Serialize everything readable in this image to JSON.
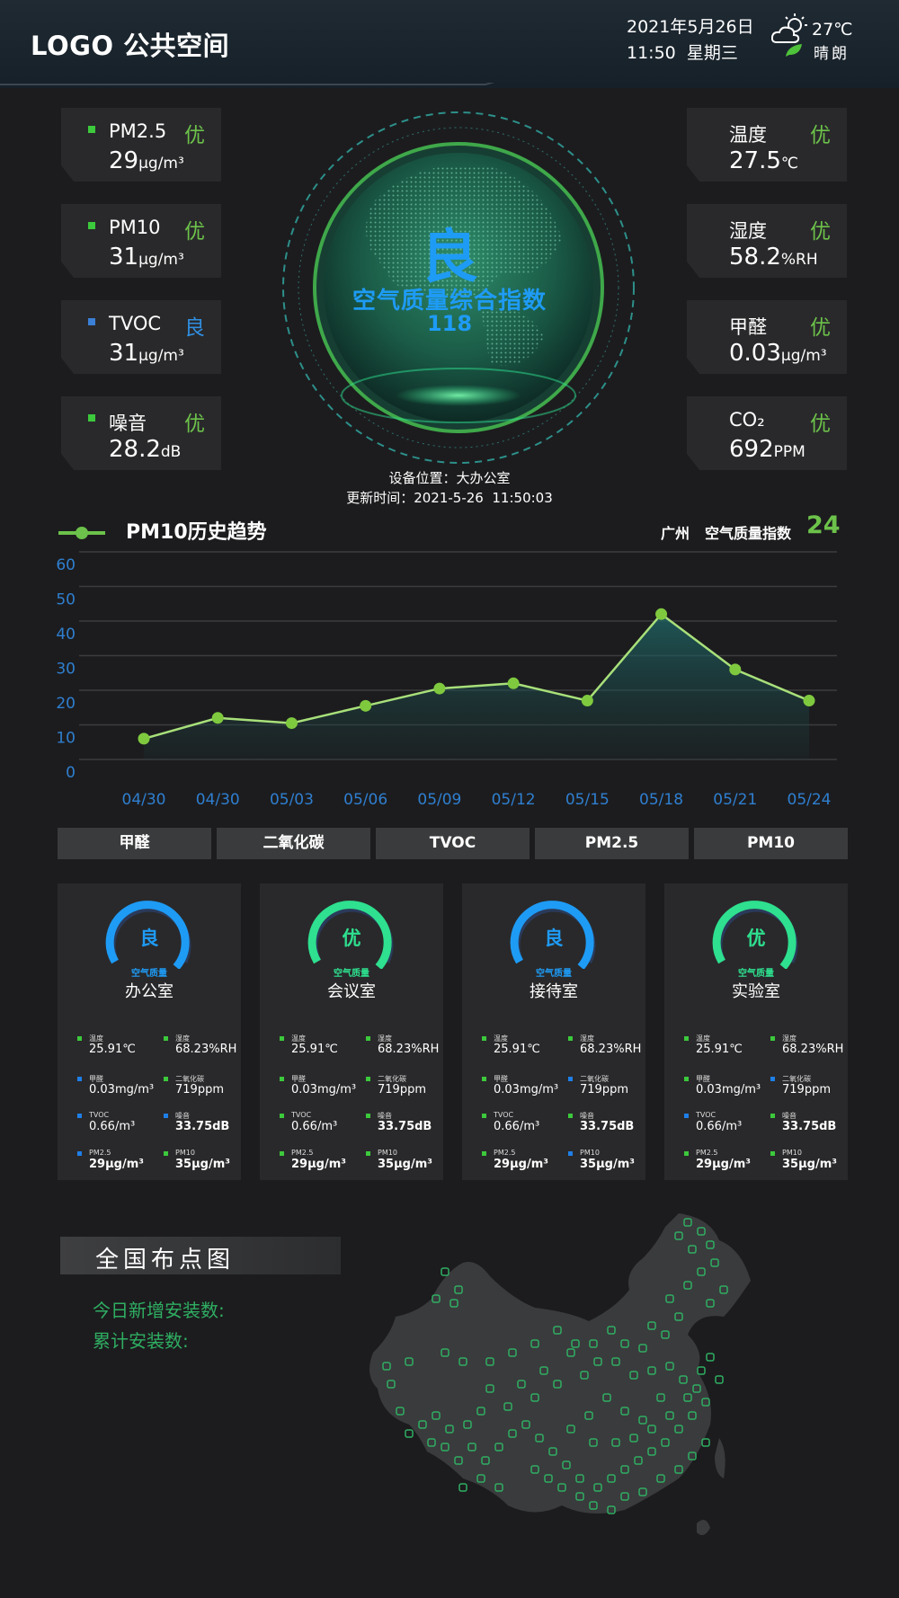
{
  "header": {
    "logo": "LOGO 公共空间",
    "date": "2021年5月26日",
    "time_weekday": "11:50  星期三",
    "temperature": "27℃",
    "weather": "晴朗"
  },
  "metrics_left": [
    {
      "name": "PM2.5",
      "level": "优",
      "value": "29",
      "unit": "μg/m³",
      "level_color": "#6cc24a"
    },
    {
      "name": "PM10",
      "level": "优",
      "value": "31",
      "unit": "μg/m³",
      "level_color": "#6cc24a"
    },
    {
      "name": "TVOC",
      "level": "良",
      "value": "31",
      "unit": "μg/m³",
      "level_color": "#2f8ee0"
    },
    {
      "name": "噪音",
      "level": "优",
      "value": "28.2",
      "unit": "dB",
      "level_color": "#6cc24a"
    }
  ],
  "metrics_right": [
    {
      "name": "温度",
      "level": "优",
      "value": "27.5",
      "unit": "℃"
    },
    {
      "name": "湿度",
      "level": "优",
      "value": "58.2",
      "unit": "%RH"
    },
    {
      "name": "甲醛",
      "level": "优",
      "value": "0.03",
      "unit": "μg/m³"
    },
    {
      "name": "CO₂",
      "level": "优",
      "value": "692",
      "unit": "PPM"
    }
  ],
  "globe": {
    "level": "良",
    "label": "空气质量综合指数",
    "value": "118"
  },
  "device": {
    "location": "设备位置：大办公室",
    "updated": "更新时间：2021-5-26  11:50:03"
  },
  "trend": {
    "title": "PM10历史趋势",
    "city": "广州",
    "aqi_label": "空气质量指数",
    "aqi_value": "24"
  },
  "chart_data": {
    "type": "area",
    "categories": [
      "04/30",
      "04/30",
      "05/03",
      "05/06",
      "05/09",
      "05/12",
      "05/15",
      "05/18",
      "05/21",
      "05/24"
    ],
    "values": [
      6,
      12,
      10.5,
      15.5,
      20.5,
      22,
      17,
      42,
      26,
      17
    ],
    "yticks": [
      0,
      10,
      20,
      30,
      40,
      50,
      60
    ],
    "ylim": [
      0,
      60
    ],
    "xlabel": "",
    "ylabel": "",
    "line_color": "#a8e07a",
    "point_color": "#7fc93f",
    "tick_color": "#2f7fd0"
  },
  "tabs": [
    "甲醛",
    "二氧化碳",
    "TVOC",
    "PM2.5",
    "PM10"
  ],
  "rooms": [
    {
      "level": "良",
      "sub": "空气质量",
      "name": "办公室",
      "color": "#1e9bf5",
      "items": [
        {
          "label": "温度",
          "value": "25.91℃",
          "sq": "green",
          "bold": false
        },
        {
          "label": "湿度",
          "value": "68.23%RH",
          "sq": "green",
          "bold": false
        },
        {
          "label": "甲醛",
          "value": "0.03mg/m³",
          "sq": "blue",
          "bold": false
        },
        {
          "label": "二氧化碳",
          "value": "719ppm",
          "sq": "green",
          "bold": false
        },
        {
          "label": "TVOC",
          "value": "0.66/m³",
          "sq": "blue",
          "bold": false
        },
        {
          "label": "噪音",
          "value": "33.75dB",
          "sq": "blue",
          "bold": true
        },
        {
          "label": "PM2.5",
          "value": "29μg/m³",
          "sq": "blue",
          "bold": true
        },
        {
          "label": "PM10",
          "value": "35μg/m³",
          "sq": "green",
          "bold": true
        }
      ]
    },
    {
      "level": "优",
      "sub": "空气质量",
      "name": "会议室",
      "color": "#2ee08f",
      "items": [
        {
          "label": "温度",
          "value": "25.91℃",
          "sq": "green",
          "bold": false
        },
        {
          "label": "湿度",
          "value": "68.23%RH",
          "sq": "green",
          "bold": false
        },
        {
          "label": "甲醛",
          "value": "0.03mg/m³",
          "sq": "green",
          "bold": false
        },
        {
          "label": "二氧化碳",
          "value": "719ppm",
          "sq": "green",
          "bold": false
        },
        {
          "label": "TVOC",
          "value": "0.66/m³",
          "sq": "green",
          "bold": false
        },
        {
          "label": "噪音",
          "value": "33.75dB",
          "sq": "green",
          "bold": true
        },
        {
          "label": "PM2.5",
          "value": "29μg/m³",
          "sq": "green",
          "bold": true
        },
        {
          "label": "PM10",
          "value": "35μg/m³",
          "sq": "green",
          "bold": true
        }
      ]
    },
    {
      "level": "良",
      "sub": "空气质量",
      "name": "接待室",
      "color": "#1e9bf5",
      "items": [
        {
          "label": "温度",
          "value": "25.91℃",
          "sq": "green",
          "bold": false
        },
        {
          "label": "湿度",
          "value": "68.23%RH",
          "sq": "green",
          "bold": false
        },
        {
          "label": "甲醛",
          "value": "0.03mg/m³",
          "sq": "green",
          "bold": false
        },
        {
          "label": "二氧化碳",
          "value": "719ppm",
          "sq": "blue",
          "bold": false
        },
        {
          "label": "TVOC",
          "value": "0.66/m³",
          "sq": "green",
          "bold": false
        },
        {
          "label": "噪音",
          "value": "33.75dB",
          "sq": "green",
          "bold": true
        },
        {
          "label": "PM2.5",
          "value": "29μg/m³",
          "sq": "green",
          "bold": true
        },
        {
          "label": "PM10",
          "value": "35μg/m³",
          "sq": "blue",
          "bold": true
        }
      ]
    },
    {
      "level": "优",
      "sub": "空气质量",
      "name": "实验室",
      "color": "#2ee08f",
      "items": [
        {
          "label": "温度",
          "value": "25.91℃",
          "sq": "green",
          "bold": false
        },
        {
          "label": "湿度",
          "value": "68.23%RH",
          "sq": "green",
          "bold": false
        },
        {
          "label": "甲醛",
          "value": "0.03mg/m³",
          "sq": "green",
          "bold": false
        },
        {
          "label": "二氧化碳",
          "value": "719ppm",
          "sq": "blue",
          "bold": false
        },
        {
          "label": "TVOC",
          "value": "0.66/m³",
          "sq": "blue",
          "bold": false
        },
        {
          "label": "噪音",
          "value": "33.75dB",
          "sq": "green",
          "bold": true
        },
        {
          "label": "PM2.5",
          "value": "29μg/m³",
          "sq": "green",
          "bold": true
        },
        {
          "label": "PM10",
          "value": "35μg/m³",
          "sq": "green",
          "bold": true
        }
      ]
    }
  ],
  "map": {
    "title": "全国布点图",
    "new_installs": "今日新增安装数:",
    "total_installs": "累计安装数:"
  },
  "colors": {
    "green": "#6cc24a",
    "blue": "#1e9bf5",
    "teal": "#2ee08f",
    "background": "#1c1c1e",
    "card": "#29292b"
  }
}
